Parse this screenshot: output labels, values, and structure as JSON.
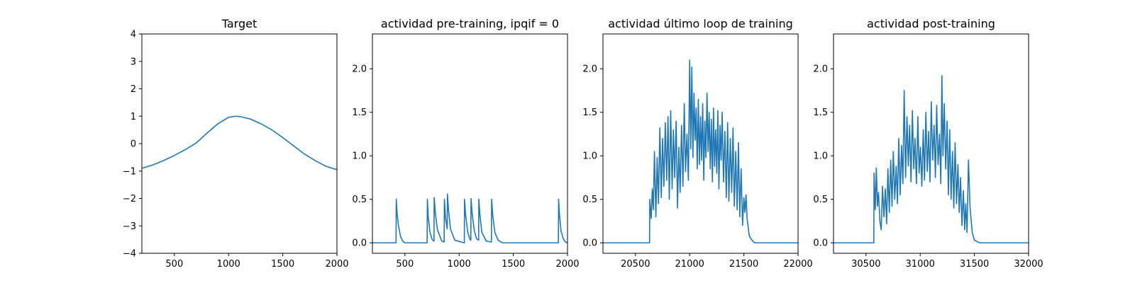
{
  "chart_data": [
    {
      "type": "line",
      "title": "Target",
      "xlim": [
        200,
        2000
      ],
      "ylim": [
        -4,
        4
      ],
      "xticks": [
        500,
        1000,
        1500,
        2000
      ],
      "yticks": [
        -4,
        -3,
        -2,
        -1,
        0,
        1,
        2,
        3,
        4
      ],
      "xtick_labels": [
        "500",
        "1000",
        "1500",
        "2000"
      ],
      "ytick_labels": [
        "−4",
        "−3",
        "−2",
        "−1",
        "0",
        "1",
        "2",
        "3",
        "4"
      ],
      "series": [
        {
          "name": "target",
          "color": "#1f77b4",
          "x": [
            200,
            300,
            400,
            500,
            600,
            700,
            800,
            900,
            1000,
            1060,
            1100,
            1200,
            1300,
            1400,
            1500,
            1600,
            1700,
            1800,
            1900,
            2000
          ],
          "y": [
            -0.9,
            -0.78,
            -0.62,
            -0.43,
            -0.22,
            0.02,
            0.38,
            0.72,
            0.96,
            1.0,
            0.99,
            0.9,
            0.72,
            0.5,
            0.22,
            -0.08,
            -0.38,
            -0.62,
            -0.83,
            -0.95
          ]
        }
      ]
    },
    {
      "type": "line",
      "title": "actividad pre-training, ipqif = 0",
      "xlim": [
        200,
        2000
      ],
      "ylim": [
        -0.12,
        2.4
      ],
      "xticks": [
        500,
        1000,
        1500,
        2000
      ],
      "yticks": [
        0.0,
        0.5,
        1.0,
        1.5,
        2.0
      ],
      "xtick_labels": [
        "500",
        "1000",
        "1500",
        "2000"
      ],
      "ytick_labels": [
        "0.0",
        "0.5",
        "1.0",
        "1.5",
        "2.0"
      ],
      "series": [
        {
          "name": "actividad",
          "color": "#1f77b4",
          "x": [
            200,
            418,
            420,
            428,
            440,
            460,
            480,
            500,
            600,
            705,
            707,
            715,
            730,
            750,
            768,
            770,
            780,
            800,
            840,
            862,
            864,
            875,
            890,
            892,
            902,
            920,
            960,
            1048,
            1050,
            1060,
            1080,
            1100,
            1108,
            1110,
            1120,
            1140,
            1160,
            1180,
            1182,
            1192,
            1210,
            1250,
            1298,
            1300,
            1310,
            1330,
            1360,
            1400,
            1600,
            1800,
            1916,
            1918,
            1925,
            1940,
            1960,
            1980,
            2000
          ],
          "y": [
            0.0,
            0.0,
            0.5,
            0.33,
            0.2,
            0.07,
            0.02,
            0.0,
            0.0,
            0.0,
            0.5,
            0.3,
            0.13,
            0.04,
            0.02,
            0.52,
            0.35,
            0.15,
            0.02,
            0.01,
            0.5,
            0.28,
            0.16,
            0.56,
            0.38,
            0.16,
            0.03,
            0.0,
            0.5,
            0.32,
            0.12,
            0.04,
            0.03,
            0.51,
            0.34,
            0.14,
            0.05,
            0.03,
            0.5,
            0.32,
            0.12,
            0.02,
            0.01,
            0.5,
            0.32,
            0.12,
            0.03,
            0.0,
            0.0,
            0.0,
            0.0,
            0.5,
            0.34,
            0.14,
            0.05,
            0.01,
            0.0
          ]
        }
      ]
    },
    {
      "type": "line",
      "title": "actividad último loop de training",
      "xlim": [
        20200,
        22000
      ],
      "ylim": [
        -0.12,
        2.4
      ],
      "xticks": [
        20500,
        21000,
        21500,
        22000
      ],
      "yticks": [
        0.0,
        0.5,
        1.0,
        1.5,
        2.0
      ],
      "xtick_labels": [
        "20500",
        "21000",
        "21500",
        "22000"
      ],
      "ytick_labels": [
        "0.0",
        "0.5",
        "1.0",
        "1.5",
        "2.0"
      ],
      "series": [
        {
          "name": "actividad",
          "color": "#1f77b4",
          "x": [
            20200,
            20630,
            20632,
            20645,
            20655,
            20665,
            20675,
            20688,
            20700,
            20712,
            20725,
            20738,
            20750,
            20762,
            20775,
            20788,
            20800,
            20812,
            20825,
            20838,
            20850,
            20862,
            20875,
            20888,
            20900,
            20912,
            20925,
            20938,
            20950,
            20962,
            20975,
            20988,
            21000,
            21010,
            21020,
            21030,
            21040,
            21050,
            21060,
            21070,
            21080,
            21090,
            21100,
            21110,
            21120,
            21130,
            21140,
            21150,
            21160,
            21170,
            21180,
            21190,
            21200,
            21210,
            21220,
            21230,
            21240,
            21250,
            21260,
            21270,
            21280,
            21290,
            21300,
            21312,
            21325,
            21338,
            21350,
            21362,
            21375,
            21388,
            21400,
            21412,
            21425,
            21438,
            21450,
            21462,
            21475,
            21488,
            21500,
            21510,
            21520,
            21530,
            21540,
            21550,
            21575,
            21600,
            21650,
            21700,
            21800,
            22000
          ],
          "y": [
            0.0,
            0.0,
            0.5,
            0.28,
            0.62,
            0.38,
            1.05,
            0.3,
            0.98,
            0.45,
            1.32,
            0.52,
            1.2,
            0.65,
            1.38,
            0.72,
            1.45,
            0.5,
            1.52,
            0.62,
            1.3,
            0.75,
            1.4,
            0.4,
            1.1,
            0.58,
            1.35,
            0.65,
            1.6,
            0.82,
            1.25,
            0.72,
            2.1,
            1.08,
            2.02,
            0.98,
            1.72,
            1.18,
            1.55,
            0.85,
            1.65,
            0.9,
            1.45,
            0.95,
            1.6,
            0.72,
            1.4,
            0.98,
            1.72,
            1.05,
            1.5,
            0.85,
            1.42,
            0.7,
            1.55,
            0.88,
            1.3,
            0.8,
            1.52,
            0.62,
            1.35,
            0.95,
            1.5,
            0.7,
            1.28,
            0.52,
            1.38,
            0.48,
            1.2,
            0.58,
            1.32,
            0.42,
            1.05,
            0.38,
            1.15,
            0.3,
            0.85,
            0.2,
            0.52,
            0.35,
            0.55,
            0.28,
            0.18,
            0.08,
            0.03,
            0.0,
            0.0,
            0.0,
            0.0,
            0.0
          ]
        }
      ]
    },
    {
      "type": "line",
      "title": "actividad post-training",
      "xlim": [
        30200,
        32000
      ],
      "ylim": [
        -0.12,
        2.4
      ],
      "xticks": [
        30500,
        31000,
        31500,
        32000
      ],
      "yticks": [
        0.0,
        0.5,
        1.0,
        1.5,
        2.0
      ],
      "xtick_labels": [
        "30500",
        "31000",
        "31500",
        "32000"
      ],
      "ytick_labels": [
        "0.0",
        "0.5",
        "1.0",
        "1.5",
        "2.0"
      ],
      "series": [
        {
          "name": "actividad",
          "color": "#1f77b4",
          "x": [
            30200,
            30572,
            30574,
            30585,
            30595,
            30605,
            30615,
            30628,
            30640,
            30652,
            30665,
            30678,
            30690,
            30702,
            30715,
            30728,
            30740,
            30752,
            30765,
            30778,
            30790,
            30802,
            30815,
            30828,
            30840,
            30852,
            30865,
            30878,
            30890,
            30902,
            30915,
            30928,
            30940,
            30952,
            30965,
            30978,
            30990,
            31002,
            31015,
            31028,
            31040,
            31052,
            31065,
            31078,
            31090,
            31102,
            31115,
            31128,
            31140,
            31152,
            31165,
            31178,
            31190,
            31200,
            31210,
            31222,
            31235,
            31248,
            31260,
            31272,
            31285,
            31298,
            31310,
            31322,
            31335,
            31348,
            31360,
            31372,
            31385,
            31398,
            31410,
            31420,
            31432,
            31445,
            31460,
            31480,
            31500,
            31550,
            31600,
            31700,
            32000
          ],
          "y": [
            0.0,
            0.0,
            0.8,
            0.38,
            0.86,
            0.42,
            0.58,
            0.25,
            0.15,
            0.65,
            0.3,
            0.62,
            0.22,
            0.85,
            0.35,
            0.95,
            0.42,
            1.05,
            0.5,
            0.88,
            0.45,
            1.2,
            0.55,
            1.12,
            0.68,
            1.75,
            0.75,
            1.45,
            0.88,
            1.35,
            0.7,
            1.52,
            0.85,
            1.2,
            0.68,
            1.45,
            0.8,
            1.1,
            0.65,
            1.3,
            0.72,
            1.5,
            0.82,
            1.28,
            0.7,
            1.62,
            0.95,
            1.35,
            0.75,
            1.58,
            0.9,
            1.25,
            0.68,
            1.92,
            1.0,
            1.6,
            0.85,
            1.4,
            0.55,
            1.3,
            0.5,
            1.05,
            0.4,
            1.15,
            0.45,
            0.9,
            0.35,
            0.75,
            0.2,
            0.6,
            0.15,
            0.45,
            0.12,
            0.95,
            0.4,
            0.12,
            0.03,
            0.0,
            0.0,
            0.0,
            0.0
          ]
        }
      ]
    }
  ]
}
